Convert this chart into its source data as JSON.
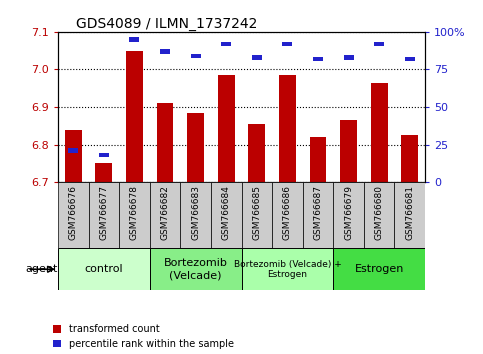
{
  "title": "GDS4089 / ILMN_1737242",
  "samples": [
    "GSM766676",
    "GSM766677",
    "GSM766678",
    "GSM766682",
    "GSM766683",
    "GSM766684",
    "GSM766685",
    "GSM766686",
    "GSM766687",
    "GSM766679",
    "GSM766680",
    "GSM766681"
  ],
  "transformed_count": [
    6.84,
    6.75,
    7.05,
    6.91,
    6.885,
    6.985,
    6.855,
    6.985,
    6.82,
    6.865,
    6.965,
    6.825
  ],
  "percentile_rank_pct": [
    21,
    18,
    95,
    87,
    84,
    92,
    83,
    92,
    82,
    83,
    92,
    82
  ],
  "ylim": [
    6.7,
    7.1
  ],
  "yticks_left": [
    6.7,
    6.8,
    6.9,
    7.0,
    7.1
  ],
  "yticks_right": [
    0,
    25,
    50,
    75,
    100
  ],
  "bar_width": 0.55,
  "red_color": "#bb0000",
  "blue_color": "#2222cc",
  "groups": [
    {
      "label": "control",
      "start": 0,
      "end": 3,
      "color": "#ccffcc"
    },
    {
      "label": "Bortezomib\n(Velcade)",
      "start": 3,
      "end": 6,
      "color": "#88ee88"
    },
    {
      "label": "Bortezomib (Velcade) +\nEstrogen",
      "start": 6,
      "end": 9,
      "color": "#aaffaa"
    },
    {
      "label": "Estrogen",
      "start": 9,
      "end": 12,
      "color": "#44dd44"
    }
  ],
  "agent_label": "agent",
  "legend_red": "transformed count",
  "legend_blue": "percentile rank within the sample",
  "sample_bg": "#cccccc",
  "plot_bg": "#ffffff",
  "fig_bg": "#ffffff"
}
